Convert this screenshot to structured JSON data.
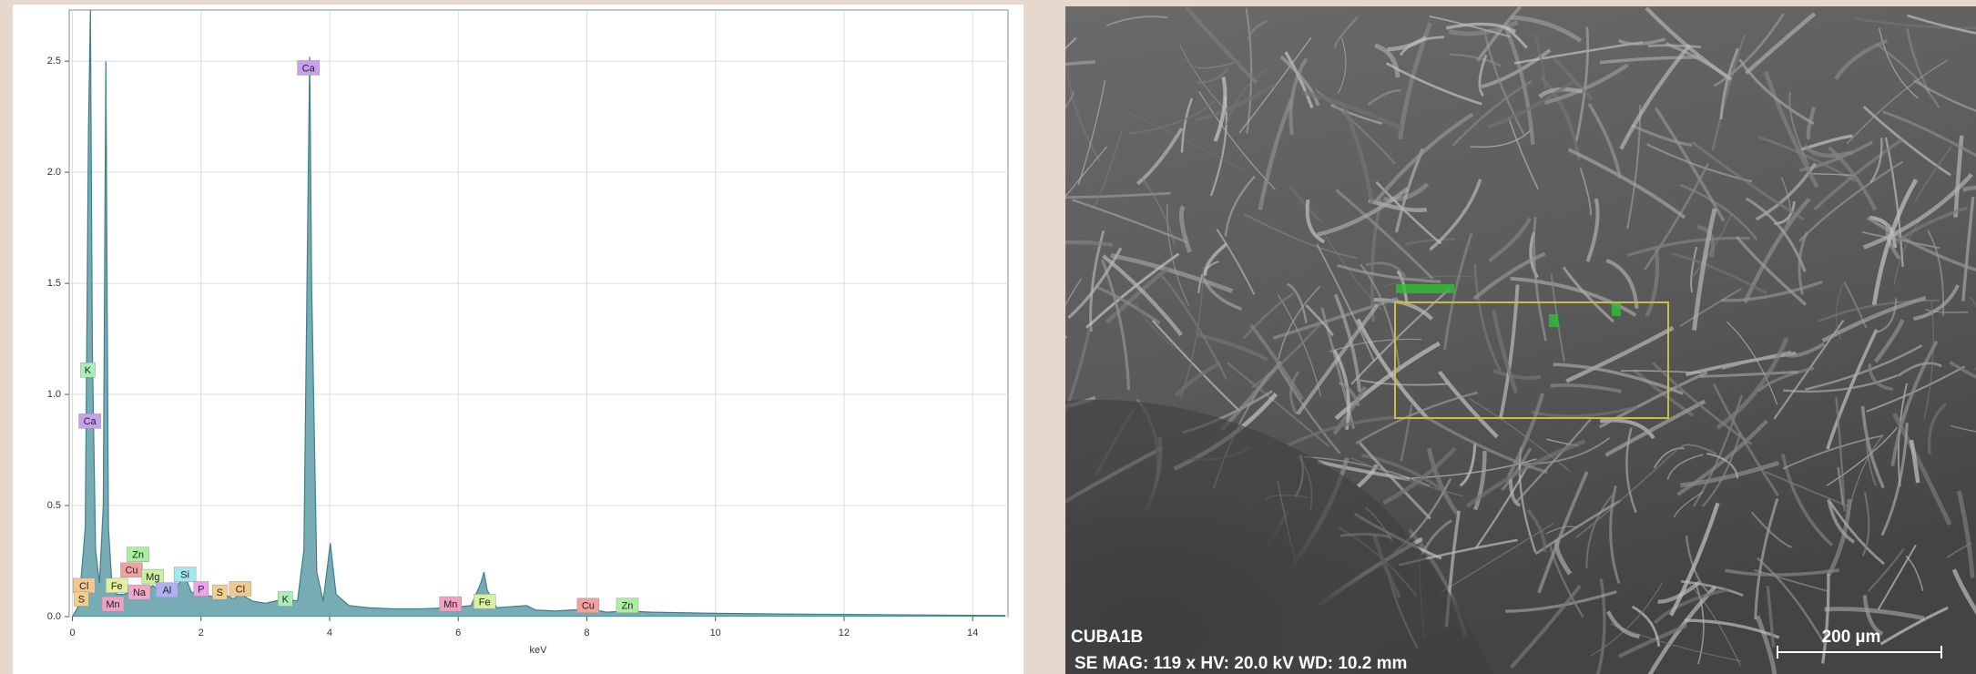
{
  "chart_data": {
    "type": "area",
    "xlabel": "keV",
    "xlim": [
      -0.05,
      14.55
    ],
    "xticks": [
      0,
      2,
      4,
      6,
      8,
      10,
      12,
      14
    ],
    "ylim": [
      0,
      2.73
    ],
    "yticks": [
      {
        "value": 0,
        "label": "0.0"
      },
      0.5,
      {
        "value": 1,
        "label": "1.0"
      },
      1.5,
      {
        "value": 2,
        "label": "2.0"
      },
      2.5
    ],
    "grid": true,
    "color": "#5f9ea8",
    "x": [
      0,
      0.1,
      0.2,
      0.25,
      0.28,
      0.31,
      0.36,
      0.42,
      0.48,
      0.52,
      0.56,
      0.62,
      0.7,
      0.8,
      0.9,
      1.0,
      1.04,
      1.1,
      1.25,
      1.35,
      1.49,
      1.6,
      1.74,
      1.85,
      2.0,
      2.2,
      2.31,
      2.5,
      2.62,
      2.8,
      3.0,
      3.31,
      3.5,
      3.6,
      3.66,
      3.69,
      3.72,
      3.8,
      3.9,
      4.01,
      4.1,
      4.3,
      4.6,
      5.0,
      5.4,
      5.9,
      6.2,
      6.35,
      6.4,
      6.45,
      6.6,
      7.06,
      7.2,
      7.5,
      8.05,
      8.3,
      8.64,
      9,
      10,
      11,
      12,
      13,
      14,
      14.5
    ],
    "values": [
      0,
      0.05,
      0.4,
      2.2,
      2.73,
      1.2,
      0.3,
      0.15,
      0.5,
      2.5,
      0.4,
      0.12,
      0.1,
      0.1,
      0.11,
      0.12,
      0.14,
      0.11,
      0.14,
      0.12,
      0.15,
      0.12,
      0.19,
      0.11,
      0.1,
      0.09,
      0.11,
      0.08,
      0.1,
      0.07,
      0.06,
      0.08,
      0.07,
      0.3,
      1.8,
      2.52,
      1.5,
      0.2,
      0.07,
      0.33,
      0.1,
      0.05,
      0.04,
      0.035,
      0.035,
      0.04,
      0.05,
      0.15,
      0.2,
      0.12,
      0.04,
      0.05,
      0.03,
      0.025,
      0.035,
      0.02,
      0.025,
      0.02,
      0.015,
      0.012,
      0.01,
      0.008,
      0.006,
      0.005
    ],
    "annotations": [
      {
        "text": "Ca",
        "x": 3.67,
        "y": 2.47,
        "color": "#c9a0f0"
      },
      {
        "text": "K",
        "x": 0.24,
        "y": 1.11,
        "color": "#a8f0b8"
      },
      {
        "text": "Ca",
        "x": 0.27,
        "y": 0.88,
        "color": "#c9a0f0"
      },
      {
        "text": "Zn",
        "x": 1.02,
        "y": 0.28,
        "color": "#a8f0a0"
      },
      {
        "text": "Cu",
        "x": 0.92,
        "y": 0.21,
        "color": "#f0a0a0"
      },
      {
        "text": "Mg",
        "x": 1.25,
        "y": 0.18,
        "color": "#c8f0a0"
      },
      {
        "text": "Si",
        "x": 1.75,
        "y": 0.19,
        "color": "#a0e8f0"
      },
      {
        "text": "Cl",
        "x": 0.18,
        "y": 0.14,
        "color": "#f0c890"
      },
      {
        "text": "Fe",
        "x": 0.69,
        "y": 0.14,
        "color": "#e0f0a0"
      },
      {
        "text": "Na",
        "x": 1.04,
        "y": 0.11,
        "color": "#f0a8c8"
      },
      {
        "text": "Al",
        "x": 1.47,
        "y": 0.12,
        "color": "#b0b0f0"
      },
      {
        "text": "P",
        "x": 2.0,
        "y": 0.125,
        "color": "#f0a0f0"
      },
      {
        "text": "S",
        "x": 2.29,
        "y": 0.11,
        "color": "#f0d090"
      },
      {
        "text": "Cl",
        "x": 2.61,
        "y": 0.125,
        "color": "#f0c890"
      },
      {
        "text": "S",
        "x": 0.14,
        "y": 0.08,
        "color": "#f0d090"
      },
      {
        "text": "Mn",
        "x": 0.63,
        "y": 0.057,
        "color": "#f0a0c0"
      },
      {
        "text": "K",
        "x": 3.31,
        "y": 0.08,
        "color": "#a8f0b8"
      },
      {
        "text": "Mn",
        "x": 5.88,
        "y": 0.057,
        "color": "#f0a0c0"
      },
      {
        "text": "Fe",
        "x": 6.41,
        "y": 0.068,
        "color": "#d8f0a0"
      },
      {
        "text": "Cu",
        "x": 8.02,
        "y": 0.05,
        "color": "#f0a0a0"
      },
      {
        "text": "Zn",
        "x": 8.63,
        "y": 0.05,
        "color": "#a8f0a0"
      }
    ]
  },
  "image": {
    "sample": "CUBA1B",
    "info": "SE  MAG: 119 x  HV: 20.0 kV  WD: 10.2 mm",
    "scale_bar": "200 µm"
  }
}
